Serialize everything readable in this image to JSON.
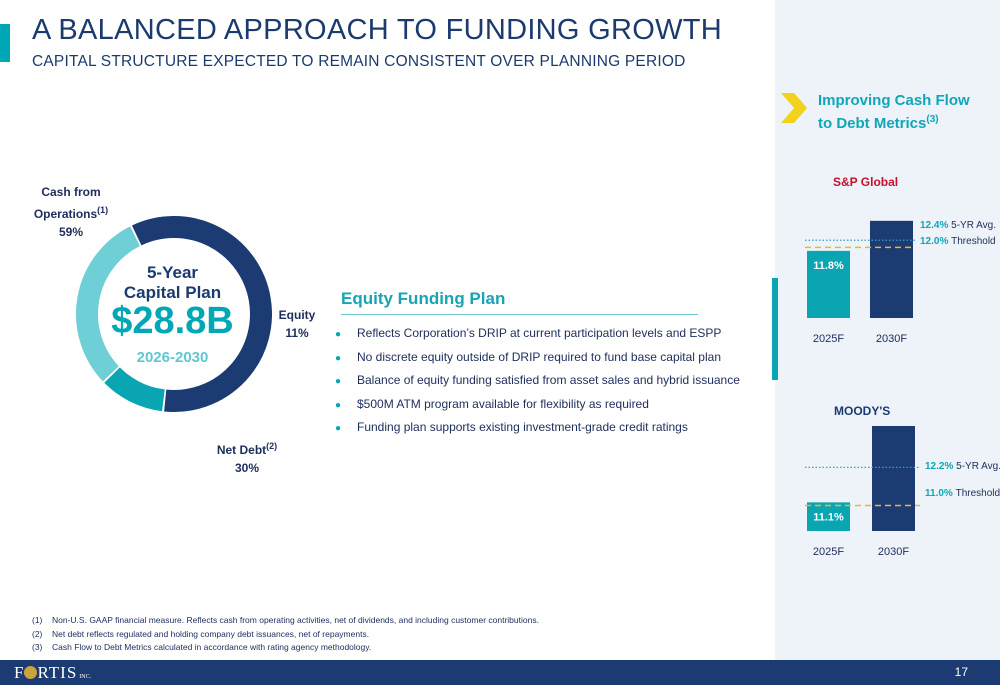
{
  "header": {
    "title": "A BALANCED APPROACH TO FUNDING GROWTH",
    "subtitle": "CAPITAL STRUCTURE EXPECTED TO REMAIN CONSISTENT OVER PLANNING PERIOD"
  },
  "capital_plan": {
    "heading_line1": "5-Year",
    "heading_line2": "Capital Plan",
    "amount": "$28.8B",
    "years": "2026-2030",
    "segments": [
      {
        "label_line1": "Cash from",
        "label_line2": "Operations",
        "sup": "(1)",
        "value": 59,
        "value_label": "59%",
        "color": "#1c3b72"
      },
      {
        "label_line1": "Equity",
        "label_line2": "",
        "sup": "",
        "value": 11,
        "value_label": "11%",
        "color": "#0aa5b3"
      },
      {
        "label_line1": "Net Debt",
        "label_line2": "",
        "sup": "(2)",
        "value": 30,
        "value_label": "30%",
        "color": "#6ecfd6"
      }
    ]
  },
  "equity_plan": {
    "title": "Equity Funding Plan",
    "bullets": [
      "Reflects Corporation’s DRIP at current participation levels and ESPP",
      "No discrete equity outside of DRIP required to fund base capital plan",
      "Balance of equity funding satisfied from asset sales and hybrid issuance",
      "$500M ATM program available for flexibility as required",
      "Funding plan supports existing investment-grade credit ratings"
    ]
  },
  "cash_flow": {
    "title_line1": "Improving Cash Flow",
    "title_line2": "to Debt Metrics",
    "title_sup": "(3)"
  },
  "chart_data": [
    {
      "type": "bar",
      "title": "S&P Global",
      "categories": [
        "2025F",
        "2030F"
      ],
      "values": [
        11.8,
        13.5
      ],
      "value_labels": [
        "11.8%",
        ""
      ],
      "ylim": [
        8,
        14
      ],
      "colors": [
        "#0aa5b3",
        "#1c3b72"
      ],
      "reference_lines": [
        {
          "value": 12.4,
          "value_label": "12.4%",
          "label": "5-YR Avg.",
          "style": "dotted",
          "color": "#3a9cc4"
        },
        {
          "value": 12.0,
          "value_label": "12.0%",
          "label": "Threshold",
          "style": "dashed",
          "color": "#e8b92e"
        }
      ]
    },
    {
      "type": "bar",
      "title": "MOODY'S",
      "categories": [
        "2025F",
        "2030F"
      ],
      "values": [
        11.1,
        13.5
      ],
      "value_labels": [
        "11.1%",
        ""
      ],
      "ylim": [
        10.2,
        13.5
      ],
      "colors": [
        "#0aa5b3",
        "#1c3b72"
      ],
      "reference_lines": [
        {
          "value": 12.2,
          "value_label": "12.2%",
          "label": "5-YR Avg.",
          "style": "dotted",
          "color": "#3a9cc4"
        },
        {
          "value": 11.0,
          "value_label": "11.0%",
          "label": "Threshold",
          "style": "dashed",
          "color": "#e8b92e"
        }
      ]
    }
  ],
  "footnotes": [
    {
      "num": "(1)",
      "text": "Non-U.S. GAAP financial measure. Reflects cash from operating activities, net of dividends, and including customer contributions."
    },
    {
      "num": "(2)",
      "text": "Net debt reflects regulated and holding company debt issuances, net of repayments."
    },
    {
      "num": "(3)",
      "text": "Cash Flow to Debt Metrics calculated in accordance with rating agency methodology."
    }
  ],
  "footer": {
    "logo_pre": "F",
    "logo_post": "RTIS",
    "logo_suffix": "INC.",
    "page_number": "17"
  }
}
